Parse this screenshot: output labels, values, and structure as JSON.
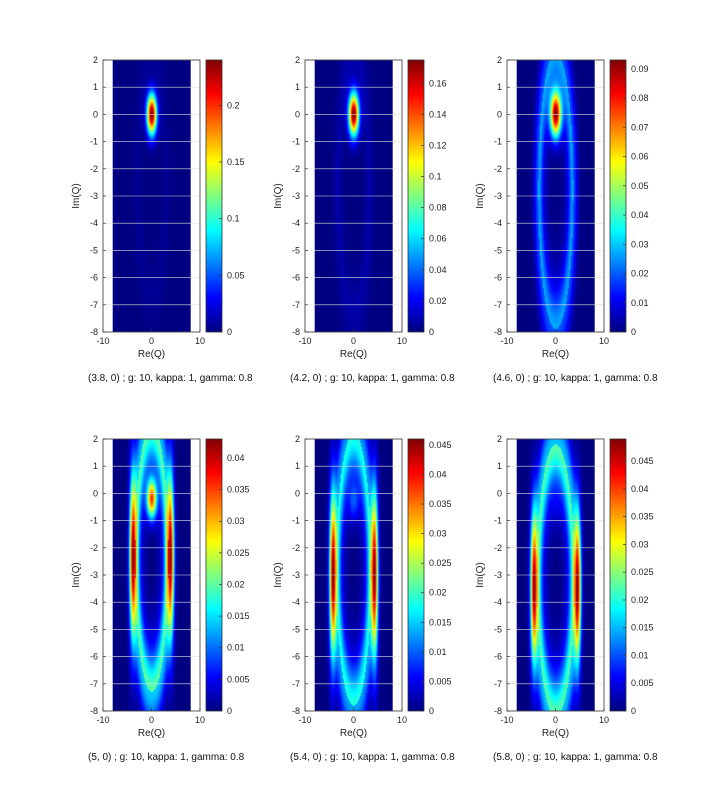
{
  "chart_data": [
    {
      "type": "heatmap",
      "colormap": "jet",
      "caption": "(3.8, 0) ; g: 10, kappa: 1, gamma: 0.8",
      "xlabel": "Re(Q)",
      "ylabel": "Im(Q)",
      "xlim": [
        -10,
        10
      ],
      "ylim": [
        -8,
        2
      ],
      "x_ticks": [
        -10,
        0,
        10
      ],
      "y_ticks": [
        -8,
        -7,
        -6,
        -5,
        -4,
        -3,
        -2,
        -1,
        0,
        1,
        2
      ],
      "data_extent": {
        "x": [
          -8,
          8
        ],
        "y": [
          -8,
          2
        ]
      },
      "color_range": [
        0,
        0.24
      ],
      "colorbar_ticks": [
        "0",
        "0.05",
        "0.1",
        "0.15",
        "0.2"
      ],
      "colorbar_tick_values": [
        0,
        0.05,
        0.1,
        0.15,
        0.2
      ],
      "distribution": {
        "peak_center": [
          0,
          0
        ],
        "peak_width": [
          1.3,
          0.95
        ],
        "ring_center": [
          0,
          -2.2
        ],
        "ring_radii": [
          3.5,
          4.8
        ],
        "ring_level": 0.02,
        "side_lobes": 0.0
      }
    },
    {
      "type": "heatmap",
      "colormap": "jet",
      "caption": "(4.2, 0) ; g: 10, kappa: 1, gamma: 0.8",
      "xlabel": "Re(Q)",
      "ylabel": "Im(Q)",
      "xlim": [
        -10,
        10
      ],
      "ylim": [
        -8,
        2
      ],
      "x_ticks": [
        -10,
        0,
        10
      ],
      "y_ticks": [
        -8,
        -7,
        -6,
        -5,
        -4,
        -3,
        -2,
        -1,
        0,
        1,
        2
      ],
      "data_extent": {
        "x": [
          -8,
          8
        ],
        "y": [
          -8,
          2
        ]
      },
      "color_range": [
        0,
        0.175
      ],
      "colorbar_ticks": [
        "0",
        "0.02",
        "0.04",
        "0.06",
        "0.08",
        "0.1",
        "0.12",
        "0.14",
        "0.16"
      ],
      "colorbar_tick_values": [
        0,
        0.02,
        0.04,
        0.06,
        0.08,
        0.1,
        0.12,
        0.14,
        0.16
      ],
      "distribution": {
        "peak_center": [
          0,
          0
        ],
        "peak_width": [
          1.35,
          1.0
        ],
        "ring_center": [
          0,
          -2.6
        ],
        "ring_radii": [
          3.8,
          5.0
        ],
        "ring_level": 0.04,
        "side_lobes": 0.0
      }
    },
    {
      "type": "heatmap",
      "colormap": "jet",
      "caption": "(4.6, 0) ; g: 10, kappa: 1, gamma: 0.8",
      "xlabel": "Re(Q)",
      "ylabel": "Im(Q)",
      "xlim": [
        -10,
        10
      ],
      "ylim": [
        -8,
        2
      ],
      "x_ticks": [
        -10,
        0,
        10
      ],
      "y_ticks": [
        -8,
        -7,
        -6,
        -5,
        -4,
        -3,
        -2,
        -1,
        0,
        1,
        2
      ],
      "data_extent": {
        "x": [
          -8,
          8
        ],
        "y": [
          -8,
          2
        ]
      },
      "color_range": [
        0,
        0.093
      ],
      "colorbar_ticks": [
        "0",
        "0.01",
        "0.02",
        "0.03",
        "0.04",
        "0.05",
        "0.06",
        "0.07",
        "0.08",
        "0.09"
      ],
      "colorbar_tick_values": [
        0,
        0.01,
        0.02,
        0.03,
        0.04,
        0.05,
        0.06,
        0.07,
        0.08,
        0.09
      ],
      "distribution": {
        "peak_center": [
          0,
          0
        ],
        "peak_width": [
          1.45,
          1.05
        ],
        "ring_center": [
          0,
          -2.8
        ],
        "ring_radii": [
          4.0,
          5.1
        ],
        "ring_level": 0.28,
        "side_lobes": 0.0
      }
    },
    {
      "type": "heatmap",
      "colormap": "jet",
      "caption": "(5, 0) ; g: 10, kappa: 1, gamma: 0.8",
      "xlabel": "Re(Q)",
      "ylabel": "Im(Q)",
      "xlim": [
        -10,
        10
      ],
      "ylim": [
        -8,
        2
      ],
      "x_ticks": [
        -10,
        0,
        10
      ],
      "y_ticks": [
        -8,
        -7,
        -6,
        -5,
        -4,
        -3,
        -2,
        -1,
        0,
        1,
        2
      ],
      "data_extent": {
        "x": [
          -8,
          8
        ],
        "y": [
          -8,
          2
        ]
      },
      "color_range": [
        0,
        0.043
      ],
      "colorbar_ticks": [
        "0",
        "0.005",
        "0.01",
        "0.015",
        "0.02",
        "0.025",
        "0.03",
        "0.035",
        "0.04"
      ],
      "colorbar_tick_values": [
        0,
        0.005,
        0.01,
        0.015,
        0.02,
        0.025,
        0.03,
        0.035,
        0.04
      ],
      "distribution": {
        "peak_center": [
          0,
          -0.2
        ],
        "peak_width": [
          1.3,
          0.9
        ],
        "ring_center": [
          0,
          -2.4
        ],
        "ring_radii": [
          3.8,
          4.9
        ],
        "ring_level": 0.55,
        "side_lobes": 0.95,
        "side_lobe_x": 3.9,
        "side_lobe_y": -2.3,
        "side_lobe_w": [
          0.9,
          2.2
        ]
      }
    },
    {
      "type": "heatmap",
      "colormap": "jet",
      "caption": "(5.4, 0) ; g: 10, kappa: 1, gamma: 0.8",
      "xlabel": "Re(Q)",
      "ylabel": "Im(Q)",
      "xlim": [
        -10,
        10
      ],
      "ylim": [
        -8,
        2
      ],
      "x_ticks": [
        -10,
        0,
        10
      ],
      "y_ticks": [
        -8,
        -7,
        -6,
        -5,
        -4,
        -3,
        -2,
        -1,
        0,
        1,
        2
      ],
      "data_extent": {
        "x": [
          -8,
          8
        ],
        "y": [
          -8,
          2
        ]
      },
      "color_range": [
        0,
        0.046
      ],
      "colorbar_ticks": [
        "0",
        "0.005",
        "0.01",
        "0.015",
        "0.02",
        "0.025",
        "0.03",
        "0.035",
        "0.04",
        "0.045"
      ],
      "colorbar_tick_values": [
        0,
        0.005,
        0.01,
        0.015,
        0.02,
        0.025,
        0.03,
        0.035,
        0.04,
        0.045
      ],
      "distribution": {
        "peak_center": [
          0,
          -0.3
        ],
        "peak_width": [
          1.4,
          0.9
        ],
        "ring_center": [
          0,
          -2.8
        ],
        "ring_radii": [
          4.0,
          5.0
        ],
        "ring_level": 0.45,
        "side_lobes": 1.0,
        "side_lobe_x": 4.3,
        "side_lobe_y": -3.0,
        "side_lobe_w": [
          0.9,
          2.2
        ],
        "peak_level": 0.2
      }
    },
    {
      "type": "heatmap",
      "colormap": "jet",
      "caption": "(5.8, 0) ; g: 10, kappa: 1, gamma: 0.8",
      "xlabel": "Re(Q)",
      "ylabel": "Im(Q)",
      "xlim": [
        -10,
        10
      ],
      "ylim": [
        -8,
        2
      ],
      "x_ticks": [
        -10,
        0,
        10
      ],
      "y_ticks": [
        -8,
        -7,
        -6,
        -5,
        -4,
        -3,
        -2,
        -1,
        0,
        1,
        2
      ],
      "data_extent": {
        "x": [
          -8,
          8
        ],
        "y": [
          -8,
          2
        ]
      },
      "color_range": [
        0,
        0.049
      ],
      "colorbar_ticks": [
        "0",
        "0.005",
        "0.01",
        "0.015",
        "0.02",
        "0.025",
        "0.03",
        "0.035",
        "0.04",
        "0.045"
      ],
      "colorbar_tick_values": [
        0,
        0.005,
        0.01,
        0.015,
        0.02,
        0.025,
        0.03,
        0.035,
        0.04,
        0.045
      ],
      "distribution": {
        "peak_center": [
          0,
          -0.5
        ],
        "peak_width": [
          1.4,
          0.9
        ],
        "ring_center": [
          0,
          -3.2
        ],
        "ring_radii": [
          4.3,
          5.0
        ],
        "ring_level": 0.55,
        "side_lobes": 1.0,
        "side_lobe_x": 4.5,
        "side_lobe_y": -3.5,
        "side_lobe_w": [
          0.9,
          2.0
        ],
        "peak_level": 0.05
      }
    }
  ]
}
